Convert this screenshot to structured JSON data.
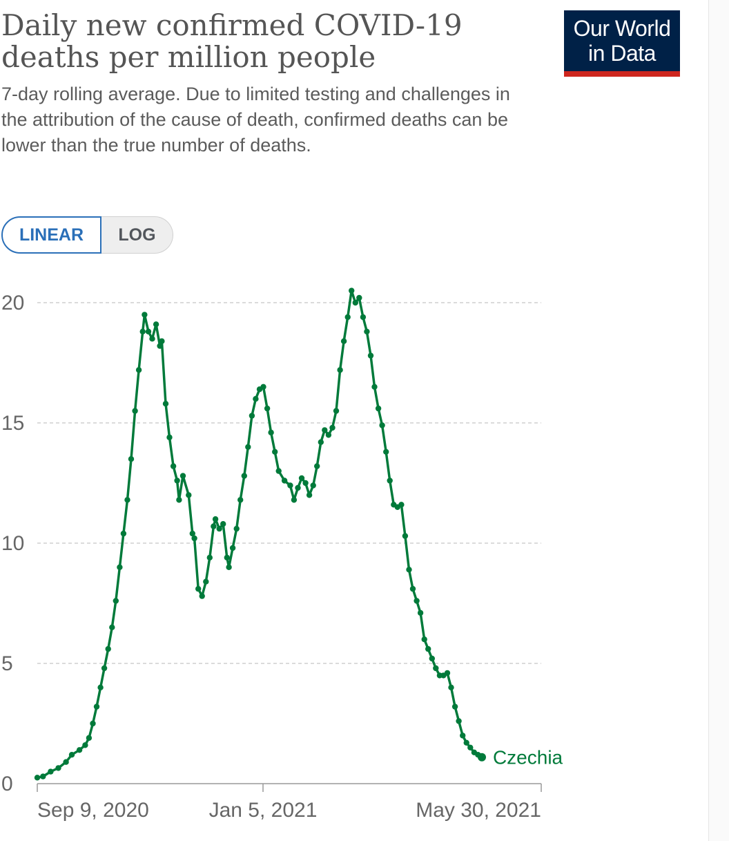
{
  "header": {
    "title": "Daily new confirmed COVID-19 deaths per million people",
    "subtitle": "7-day rolling average. Due to limited testing and challenges in the attribution of the cause of death, confirmed deaths can be lower than the true number of deaths.",
    "logo_line1": "Our World",
    "logo_line2": "in Data"
  },
  "scale_toggle": {
    "linear_label": "LINEAR",
    "log_label": "LOG",
    "selected": "LINEAR"
  },
  "colors": {
    "series": "#007a3a",
    "accent": "#2a6fb8",
    "logo_bg": "#002147",
    "logo_bar": "#ce261e"
  },
  "chart_data": {
    "type": "line",
    "title": "Daily new confirmed COVID-19 deaths per million people",
    "xlabel": "",
    "ylabel": "",
    "ylim": [
      0,
      20
    ],
    "y_ticks": [
      0,
      5,
      10,
      15,
      20
    ],
    "x_tick_labels": [
      "Sep 9, 2020",
      "Jan 5, 2021",
      "May 30, 2021"
    ],
    "x_range": [
      "Sep 9, 2020",
      "May 30, 2021"
    ],
    "grid": "horizontal dashed",
    "legend": "inline at end of line",
    "series": [
      {
        "name": "Czechia",
        "color": "#007a3a",
        "points": [
          [
            "2020-09-09",
            0.25
          ],
          [
            "2020-09-12",
            0.3
          ],
          [
            "2020-09-16",
            0.5
          ],
          [
            "2020-09-20",
            0.65
          ],
          [
            "2020-09-24",
            0.9
          ],
          [
            "2020-09-27",
            1.2
          ],
          [
            "2020-10-01",
            1.4
          ],
          [
            "2020-10-04",
            1.6
          ],
          [
            "2020-10-06",
            1.9
          ],
          [
            "2020-10-08",
            2.5
          ],
          [
            "2020-10-10",
            3.2
          ],
          [
            "2020-10-12",
            4.0
          ],
          [
            "2020-10-14",
            4.8
          ],
          [
            "2020-10-16",
            5.6
          ],
          [
            "2020-10-18",
            6.5
          ],
          [
            "2020-10-20",
            7.6
          ],
          [
            "2020-10-22",
            9.0
          ],
          [
            "2020-10-24",
            10.4
          ],
          [
            "2020-10-26",
            11.8
          ],
          [
            "2020-10-28",
            13.5
          ],
          [
            "2020-10-30",
            15.5
          ],
          [
            "2020-11-01",
            17.2
          ],
          [
            "2020-11-03",
            18.8
          ],
          [
            "2020-11-04",
            19.5
          ],
          [
            "2020-11-06",
            18.8
          ],
          [
            "2020-11-08",
            18.5
          ],
          [
            "2020-11-10",
            19.1
          ],
          [
            "2020-11-12",
            18.2
          ],
          [
            "2020-11-13",
            18.4
          ],
          [
            "2020-11-15",
            15.8
          ],
          [
            "2020-11-17",
            14.4
          ],
          [
            "2020-11-19",
            13.2
          ],
          [
            "2020-11-21",
            12.6
          ],
          [
            "2020-11-22",
            11.8
          ],
          [
            "2020-11-24",
            12.8
          ],
          [
            "2020-11-27",
            12.0
          ],
          [
            "2020-11-29",
            10.4
          ],
          [
            "2020-11-30",
            10.2
          ],
          [
            "2020-12-02",
            8.1
          ],
          [
            "2020-12-04",
            7.8
          ],
          [
            "2020-12-06",
            8.4
          ],
          [
            "2020-12-08",
            9.4
          ],
          [
            "2020-12-10",
            10.7
          ],
          [
            "2020-12-11",
            11.0
          ],
          [
            "2020-12-13",
            10.6
          ],
          [
            "2020-12-15",
            10.8
          ],
          [
            "2020-12-17",
            9.4
          ],
          [
            "2020-12-18",
            9.0
          ],
          [
            "2020-12-20",
            9.8
          ],
          [
            "2020-12-22",
            10.6
          ],
          [
            "2020-12-24",
            11.8
          ],
          [
            "2020-12-26",
            12.8
          ],
          [
            "2020-12-28",
            14.0
          ],
          [
            "2020-12-30",
            15.3
          ],
          [
            "2021-01-01",
            16.0
          ],
          [
            "2021-01-03",
            16.4
          ],
          [
            "2021-01-05",
            16.5
          ],
          [
            "2021-01-07",
            15.6
          ],
          [
            "2021-01-09",
            14.6
          ],
          [
            "2021-01-11",
            13.8
          ],
          [
            "2021-01-13",
            13.0
          ],
          [
            "2021-01-16",
            12.6
          ],
          [
            "2021-01-19",
            12.4
          ],
          [
            "2021-01-21",
            11.8
          ],
          [
            "2021-01-23",
            12.3
          ],
          [
            "2021-01-25",
            12.7
          ],
          [
            "2021-01-27",
            12.5
          ],
          [
            "2021-01-29",
            12.0
          ],
          [
            "2021-01-31",
            12.4
          ],
          [
            "2021-02-02",
            13.2
          ],
          [
            "2021-02-04",
            14.2
          ],
          [
            "2021-02-06",
            14.7
          ],
          [
            "2021-02-08",
            14.5
          ],
          [
            "2021-02-10",
            14.8
          ],
          [
            "2021-02-12",
            15.5
          ],
          [
            "2021-02-14",
            17.2
          ],
          [
            "2021-02-16",
            18.4
          ],
          [
            "2021-02-18",
            19.4
          ],
          [
            "2021-02-20",
            20.5
          ],
          [
            "2021-02-22",
            20.0
          ],
          [
            "2021-02-24",
            20.2
          ],
          [
            "2021-02-26",
            19.4
          ],
          [
            "2021-02-28",
            18.8
          ],
          [
            "2021-03-02",
            17.8
          ],
          [
            "2021-03-04",
            16.5
          ],
          [
            "2021-03-06",
            15.6
          ],
          [
            "2021-03-08",
            14.9
          ],
          [
            "2021-03-10",
            13.8
          ],
          [
            "2021-03-12",
            12.6
          ],
          [
            "2021-03-14",
            11.6
          ],
          [
            "2021-03-16",
            11.5
          ],
          [
            "2021-03-18",
            11.6
          ],
          [
            "2021-03-20",
            10.3
          ],
          [
            "2021-03-22",
            8.9
          ],
          [
            "2021-03-24",
            8.1
          ],
          [
            "2021-03-26",
            7.6
          ],
          [
            "2021-03-28",
            7.1
          ],
          [
            "2021-03-30",
            6.0
          ],
          [
            "2021-04-01",
            5.6
          ],
          [
            "2021-04-03",
            5.2
          ],
          [
            "2021-04-05",
            4.8
          ],
          [
            "2021-04-07",
            4.5
          ],
          [
            "2021-04-09",
            4.5
          ],
          [
            "2021-04-11",
            4.6
          ],
          [
            "2021-04-13",
            4.0
          ],
          [
            "2021-04-15",
            3.2
          ],
          [
            "2021-04-17",
            2.6
          ],
          [
            "2021-04-19",
            2.0
          ],
          [
            "2021-04-21",
            1.7
          ],
          [
            "2021-04-23",
            1.5
          ],
          [
            "2021-04-25",
            1.3
          ],
          [
            "2021-04-27",
            1.2
          ],
          [
            "2021-04-29",
            1.1
          ]
        ]
      }
    ]
  }
}
